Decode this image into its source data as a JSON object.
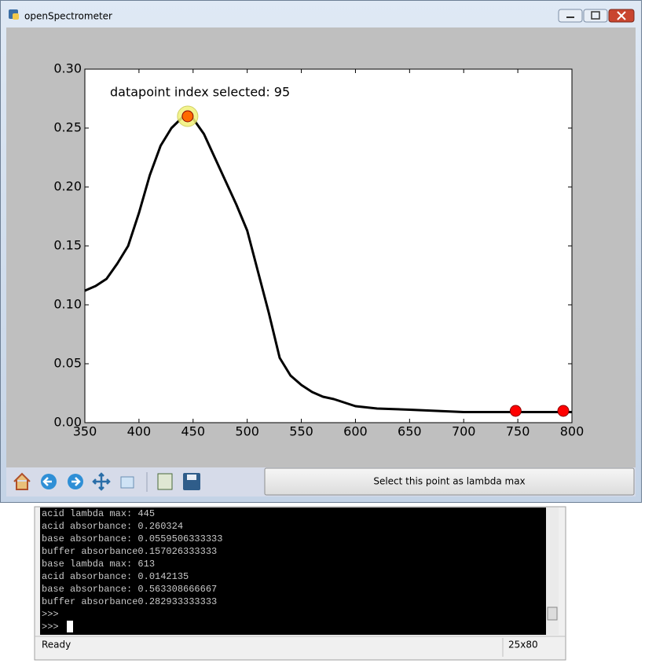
{
  "window": {
    "title": "openSpectrometer",
    "button": "Select this point as lambda max"
  },
  "chart_data": {
    "type": "line",
    "annotation": "datapoint index selected: 95",
    "x": [
      350,
      360,
      370,
      380,
      390,
      400,
      410,
      420,
      430,
      440,
      445,
      450,
      460,
      470,
      480,
      490,
      500,
      510,
      520,
      530,
      540,
      550,
      560,
      570,
      580,
      590,
      600,
      620,
      650,
      700,
      750,
      800
    ],
    "values": [
      0.112,
      0.116,
      0.122,
      0.135,
      0.15,
      0.178,
      0.21,
      0.235,
      0.25,
      0.259,
      0.26,
      0.258,
      0.245,
      0.225,
      0.205,
      0.185,
      0.163,
      0.128,
      0.093,
      0.055,
      0.04,
      0.032,
      0.026,
      0.022,
      0.02,
      0.017,
      0.014,
      0.012,
      0.011,
      0.009,
      0.009,
      0.009
    ],
    "color": "#000000",
    "xlim": [
      350,
      800
    ],
    "ylim": [
      0,
      0.3
    ],
    "xticks": [
      350,
      400,
      450,
      500,
      550,
      600,
      650,
      700,
      750,
      800
    ],
    "yticks": [
      {
        "value": 0,
        "label": "0.00"
      },
      0.05,
      {
        "value": 0.1,
        "label": "0.10"
      },
      0.15,
      {
        "value": 0.2,
        "label": "0.20"
      },
      0.25,
      {
        "value": 0.3,
        "label": "0.30"
      }
    ],
    "markers": [
      {
        "x": 445,
        "y": 0.26,
        "color": "#ff6a00",
        "halo": "#f2f27a"
      },
      {
        "x": 748,
        "y": 0.01,
        "color": "#ff0000"
      },
      {
        "x": 792,
        "y": 0.01,
        "color": "#ff0000"
      }
    ]
  },
  "console": {
    "lines": [
      "acid lambda max: 445",
      "acid absorbance: 0.260324",
      "base absorbance: 0.0559506333333",
      "buffer absorbance0.157026333333",
      "base lambda max: 613",
      "acid absorbance: 0.0142135",
      "base absorbance: 0.563308666667",
      "buffer absorbance0.282933333333",
      ">>>",
      ">>> "
    ],
    "status": "Ready",
    "size": "25x80"
  }
}
